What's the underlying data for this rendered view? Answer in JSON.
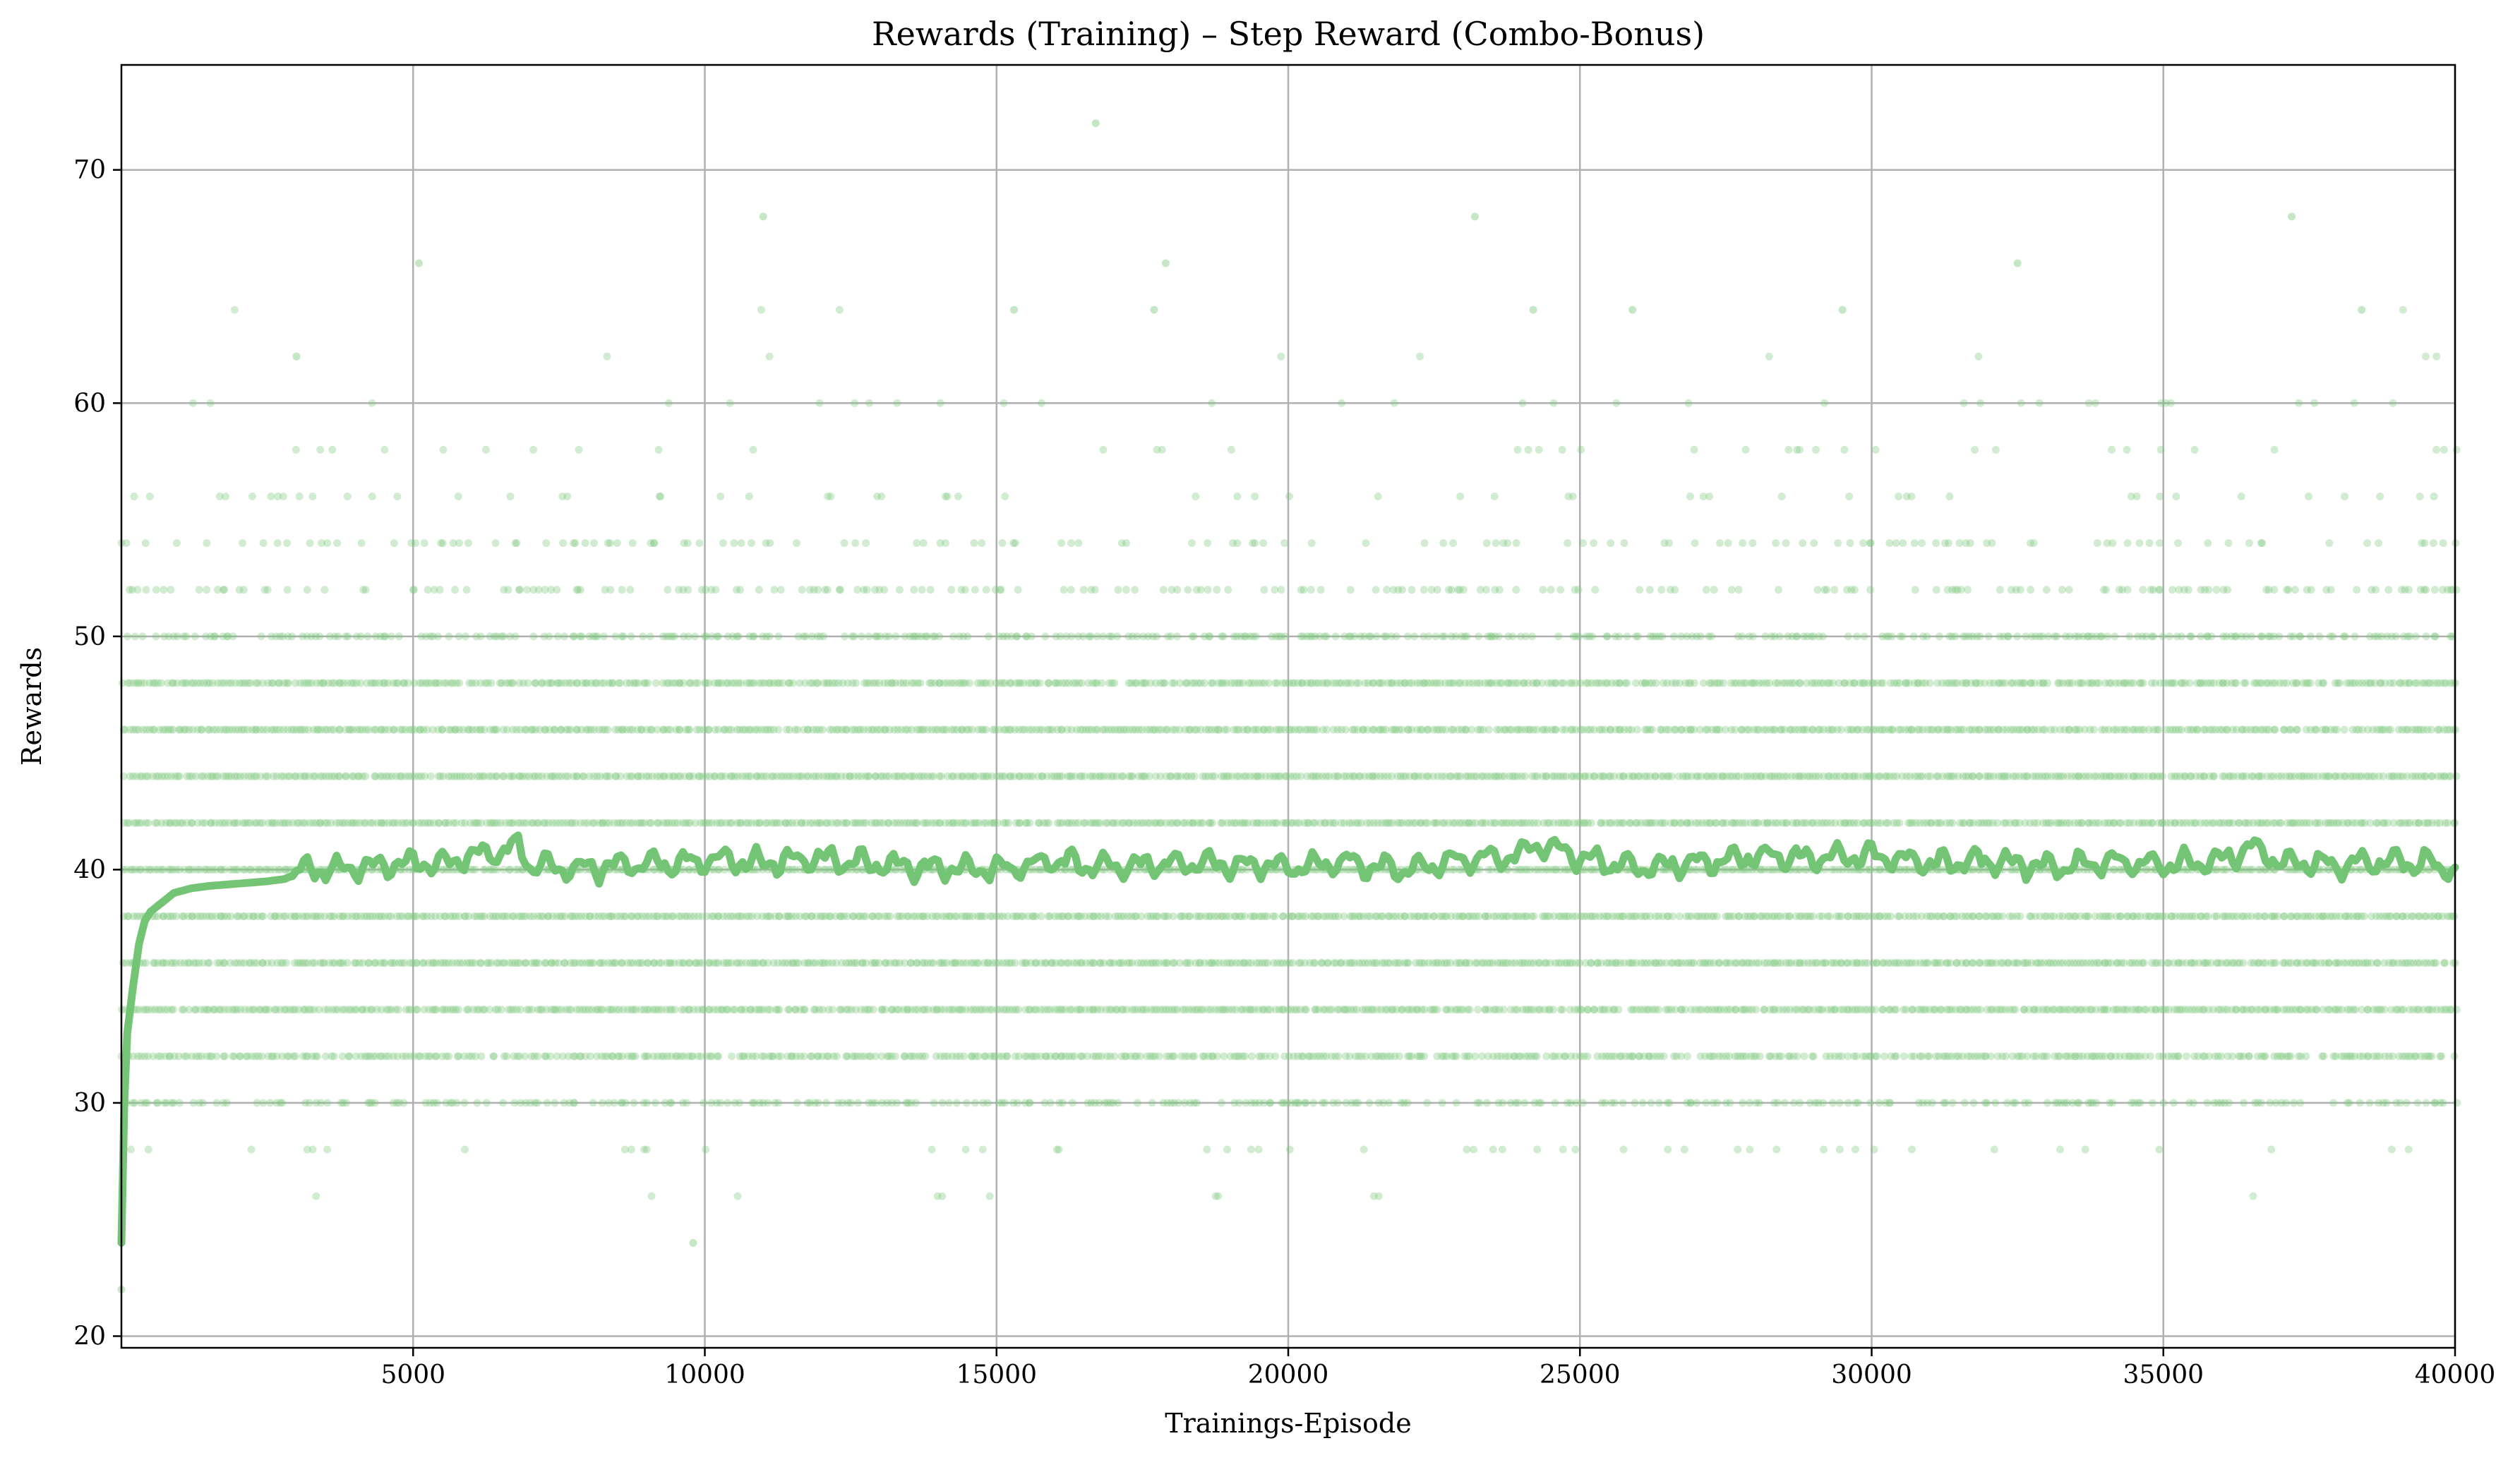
{
  "chart_data": {
    "type": "scatter",
    "title": "Rewards (Training) – Step Reward (Combo-Bonus)",
    "xlabel": "Trainings-Episode",
    "ylabel": "Rewards",
    "xlim": [
      0,
      40000
    ],
    "ylim": [
      19.5,
      74.5
    ],
    "xticks": [
      5000,
      10000,
      15000,
      20000,
      25000,
      30000,
      35000,
      40000
    ],
    "yticks": [
      20,
      30,
      40,
      50,
      60,
      70
    ],
    "grid": true,
    "legend": "none",
    "colors": {
      "scatter": "#7fc97f",
      "line": "#74c476",
      "grid": "#b0b0b0"
    },
    "scatter_levels": [
      {
        "y": 48,
        "density": 0.9
      },
      {
        "y": 46,
        "density": 0.92
      },
      {
        "y": 44,
        "density": 0.97
      },
      {
        "y": 42,
        "density": 0.97
      },
      {
        "y": 40,
        "density": 0.95
      },
      {
        "y": 38,
        "density": 0.97
      },
      {
        "y": 36,
        "density": 0.97
      },
      {
        "y": 34,
        "density": 0.95
      },
      {
        "y": 32,
        "density": 0.8
      },
      {
        "y": 50,
        "density": 0.55
      },
      {
        "y": 30,
        "density": 0.45
      },
      {
        "y": 52,
        "density": 0.3
      },
      {
        "y": 54,
        "density": 0.16
      },
      {
        "y": 28,
        "density": 0.07
      },
      {
        "y": 56,
        "density": 0.09
      },
      {
        "y": 58,
        "density": 0.04
      },
      {
        "y": 60,
        "density": 0.025
      },
      {
        "y": 62,
        "density": 0.012
      },
      {
        "y": 26,
        "density": 0.006
      },
      {
        "y": 64,
        "density": 0.004
      }
    ],
    "outliers": [
      {
        "x": 16700,
        "y": 72
      },
      {
        "x": 5100,
        "y": 66
      },
      {
        "x": 17900,
        "y": 66
      },
      {
        "x": 32500,
        "y": 66
      },
      {
        "x": 11000,
        "y": 68
      },
      {
        "x": 23200,
        "y": 68
      },
      {
        "x": 37200,
        "y": 68
      },
      {
        "x": 9800,
        "y": 24
      },
      {
        "x": 0,
        "y": 22
      },
      {
        "x": 3000,
        "y": 62
      },
      {
        "x": 15300,
        "y": 64
      },
      {
        "x": 17700,
        "y": 64
      },
      {
        "x": 24200,
        "y": 64
      },
      {
        "x": 25900,
        "y": 64
      },
      {
        "x": 29500,
        "y": 64
      },
      {
        "x": 38400,
        "y": 64
      }
    ],
    "moving_average": {
      "x": [
        0,
        50,
        100,
        200,
        300,
        400,
        500,
        700,
        900,
        1200,
        1500,
        2000,
        2500,
        2800,
        3000,
        3500,
        4000,
        4500,
        5000,
        5500,
        6000,
        6500,
        6800,
        7000,
        7500,
        8000,
        8500,
        9000,
        9500,
        10000,
        11000,
        12000,
        13000,
        14000,
        15000,
        16000,
        17000,
        18000,
        19000,
        20000,
        21000,
        22000,
        23000,
        24000,
        24200,
        25000,
        26000,
        27000,
        28000,
        29000,
        30000,
        31000,
        32000,
        33000,
        34000,
        35000,
        36000,
        36500,
        37000,
        38000,
        39000,
        40000
      ],
      "y": [
        24,
        30,
        33,
        35,
        36.8,
        37.8,
        38.2,
        38.6,
        39.0,
        39.2,
        39.3,
        39.4,
        39.5,
        39.6,
        40.0,
        40.0,
        40.1,
        40.2,
        40.3,
        40.3,
        40.6,
        40.8,
        41.0,
        40.2,
        40.1,
        40.0,
        40.2,
        40.3,
        40.2,
        40.4,
        40.3,
        40.5,
        40.2,
        40.1,
        40.0,
        40.4,
        40.1,
        40.3,
        40.2,
        40.1,
        40.3,
        40.0,
        40.4,
        40.6,
        41.2,
        40.5,
        40.1,
        40.3,
        40.6,
        40.5,
        40.6,
        40.3,
        40.4,
        40.1,
        40.3,
        40.2,
        40.4,
        41.0,
        40.3,
        40.2,
        40.4,
        40.1
      ]
    }
  }
}
